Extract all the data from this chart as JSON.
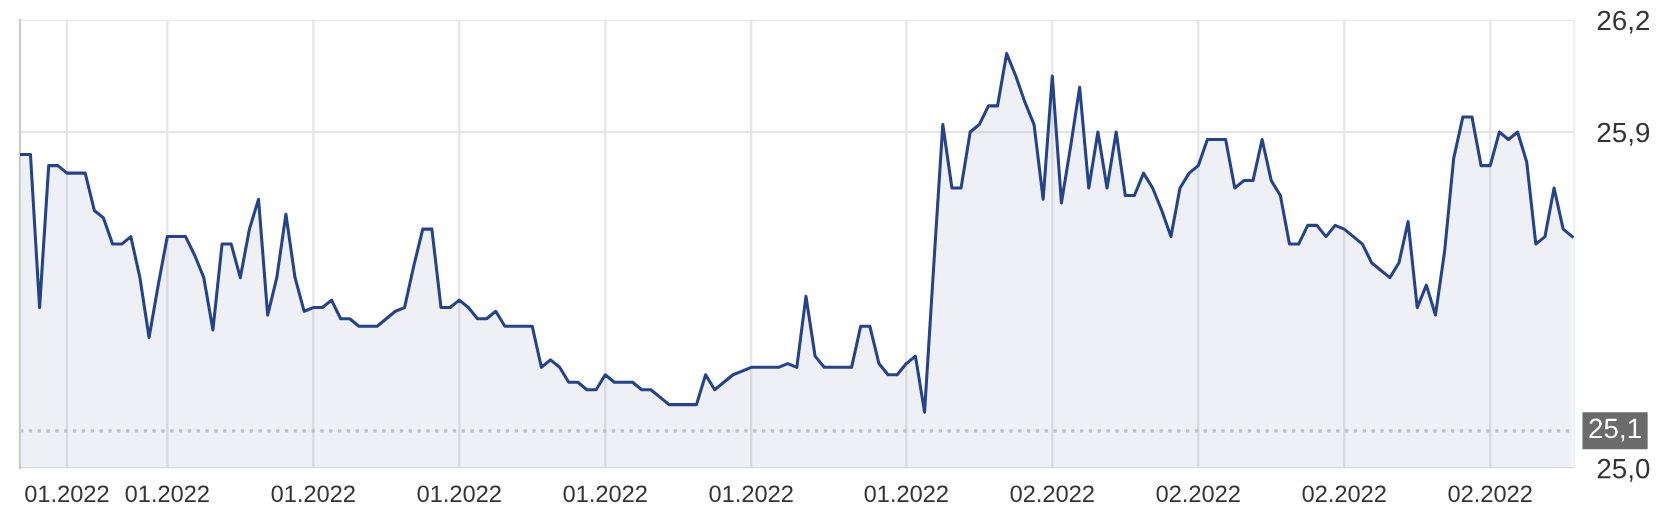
{
  "chart_data": {
    "type": "area",
    "categories": [
      null,
      null,
      null,
      null,
      null,
      "01.2022",
      null,
      null,
      null,
      null,
      null,
      null,
      null,
      null,
      null,
      null,
      "01.2022",
      null,
      null,
      null,
      null,
      null,
      null,
      null,
      null,
      null,
      null,
      null,
      null,
      null,
      null,
      null,
      "01.2022",
      null,
      null,
      null,
      null,
      null,
      null,
      null,
      null,
      null,
      null,
      null,
      null,
      null,
      null,
      null,
      "01.2022",
      null,
      null,
      null,
      null,
      null,
      null,
      null,
      null,
      null,
      null,
      null,
      null,
      null,
      null,
      null,
      "01.2022",
      null,
      null,
      null,
      null,
      null,
      null,
      null,
      null,
      null,
      null,
      null,
      null,
      null,
      null,
      null,
      "01.2022",
      null,
      null,
      null,
      null,
      null,
      null,
      null,
      null,
      null,
      null,
      null,
      null,
      null,
      null,
      null,
      null,
      "01.2022",
      null,
      null,
      null,
      null,
      null,
      null,
      null,
      null,
      null,
      null,
      null,
      null,
      null,
      null,
      null,
      "02.2022",
      null,
      null,
      null,
      null,
      null,
      null,
      null,
      null,
      null,
      null,
      null,
      null,
      null,
      null,
      null,
      "02.2022",
      null,
      null,
      null,
      null,
      null,
      null,
      null,
      null,
      null,
      null,
      null,
      null,
      null,
      null,
      null,
      "02.2022",
      null,
      null,
      null,
      null,
      null,
      null,
      null,
      null,
      null,
      null,
      null,
      null,
      null,
      null,
      null,
      "02.2022",
      null,
      null,
      null,
      null,
      null,
      null,
      null,
      null,
      null
    ],
    "series": [
      {
        "color": "#24438a",
        "values": [
          25.84,
          25.84,
          25.43,
          25.81,
          25.81,
          25.79,
          25.79,
          25.79,
          25.69,
          25.67,
          25.6,
          25.6,
          25.62,
          25.51,
          25.35,
          25.49,
          25.62,
          25.62,
          25.62,
          25.57,
          25.51,
          25.37,
          25.6,
          25.6,
          25.51,
          25.64,
          25.72,
          25.41,
          25.51,
          25.68,
          25.51,
          25.42,
          25.43,
          25.43,
          25.45,
          25.4,
          25.4,
          25.38,
          25.38,
          25.38,
          25.4,
          25.42,
          25.43,
          25.54,
          25.64,
          25.64,
          25.43,
          25.43,
          25.45,
          25.43,
          25.4,
          25.4,
          25.42,
          25.38,
          25.38,
          25.38,
          25.38,
          25.27,
          25.29,
          25.27,
          25.23,
          25.23,
          25.21,
          25.21,
          25.25,
          25.23,
          25.23,
          25.23,
          25.21,
          25.21,
          25.19,
          25.17,
          25.17,
          25.17,
          25.17,
          25.25,
          25.21,
          25.23,
          25.25,
          25.26,
          25.27,
          25.27,
          25.27,
          25.27,
          25.28,
          25.27,
          25.46,
          25.3,
          25.27,
          25.27,
          25.27,
          25.27,
          25.38,
          25.38,
          25.28,
          25.25,
          25.25,
          25.28,
          25.3,
          25.15,
          25.54,
          25.92,
          25.75,
          25.75,
          25.9,
          25.92,
          25.97,
          25.97,
          26.11,
          26.05,
          25.98,
          25.92,
          25.72,
          26.05,
          25.71,
          25.86,
          26.02,
          25.75,
          25.9,
          25.75,
          25.9,
          25.73,
          25.73,
          25.79,
          25.75,
          25.69,
          25.62,
          25.75,
          25.79,
          25.81,
          25.88,
          25.88,
          25.88,
          25.75,
          25.77,
          25.77,
          25.88,
          25.77,
          25.73,
          25.6,
          25.6,
          25.65,
          25.65,
          25.62,
          25.65,
          25.64,
          25.62,
          25.6,
          25.55,
          25.53,
          25.51,
          25.55,
          25.66,
          25.43,
          25.49,
          25.41,
          25.58,
          25.83,
          25.94,
          25.94,
          25.81,
          25.81,
          25.9,
          25.88,
          25.9,
          25.82,
          25.6,
          25.62,
          25.75,
          25.64,
          25.62
        ]
      }
    ],
    "ylim": [
      25.0,
      26.2
    ],
    "yticks": [
      {
        "value": 25.0,
        "label": "25,0"
      },
      {
        "value": 25.9,
        "label": "25,9"
      },
      {
        "value": 26.2,
        "label": "26,2"
      }
    ],
    "ref_lines": [
      {
        "axis": "y",
        "value": 25.1,
        "label": "25,1",
        "color": "#cccccc",
        "line_style": "dotted"
      }
    ],
    "grid": true,
    "legend": false,
    "marker": "none",
    "line_style": "solid"
  }
}
